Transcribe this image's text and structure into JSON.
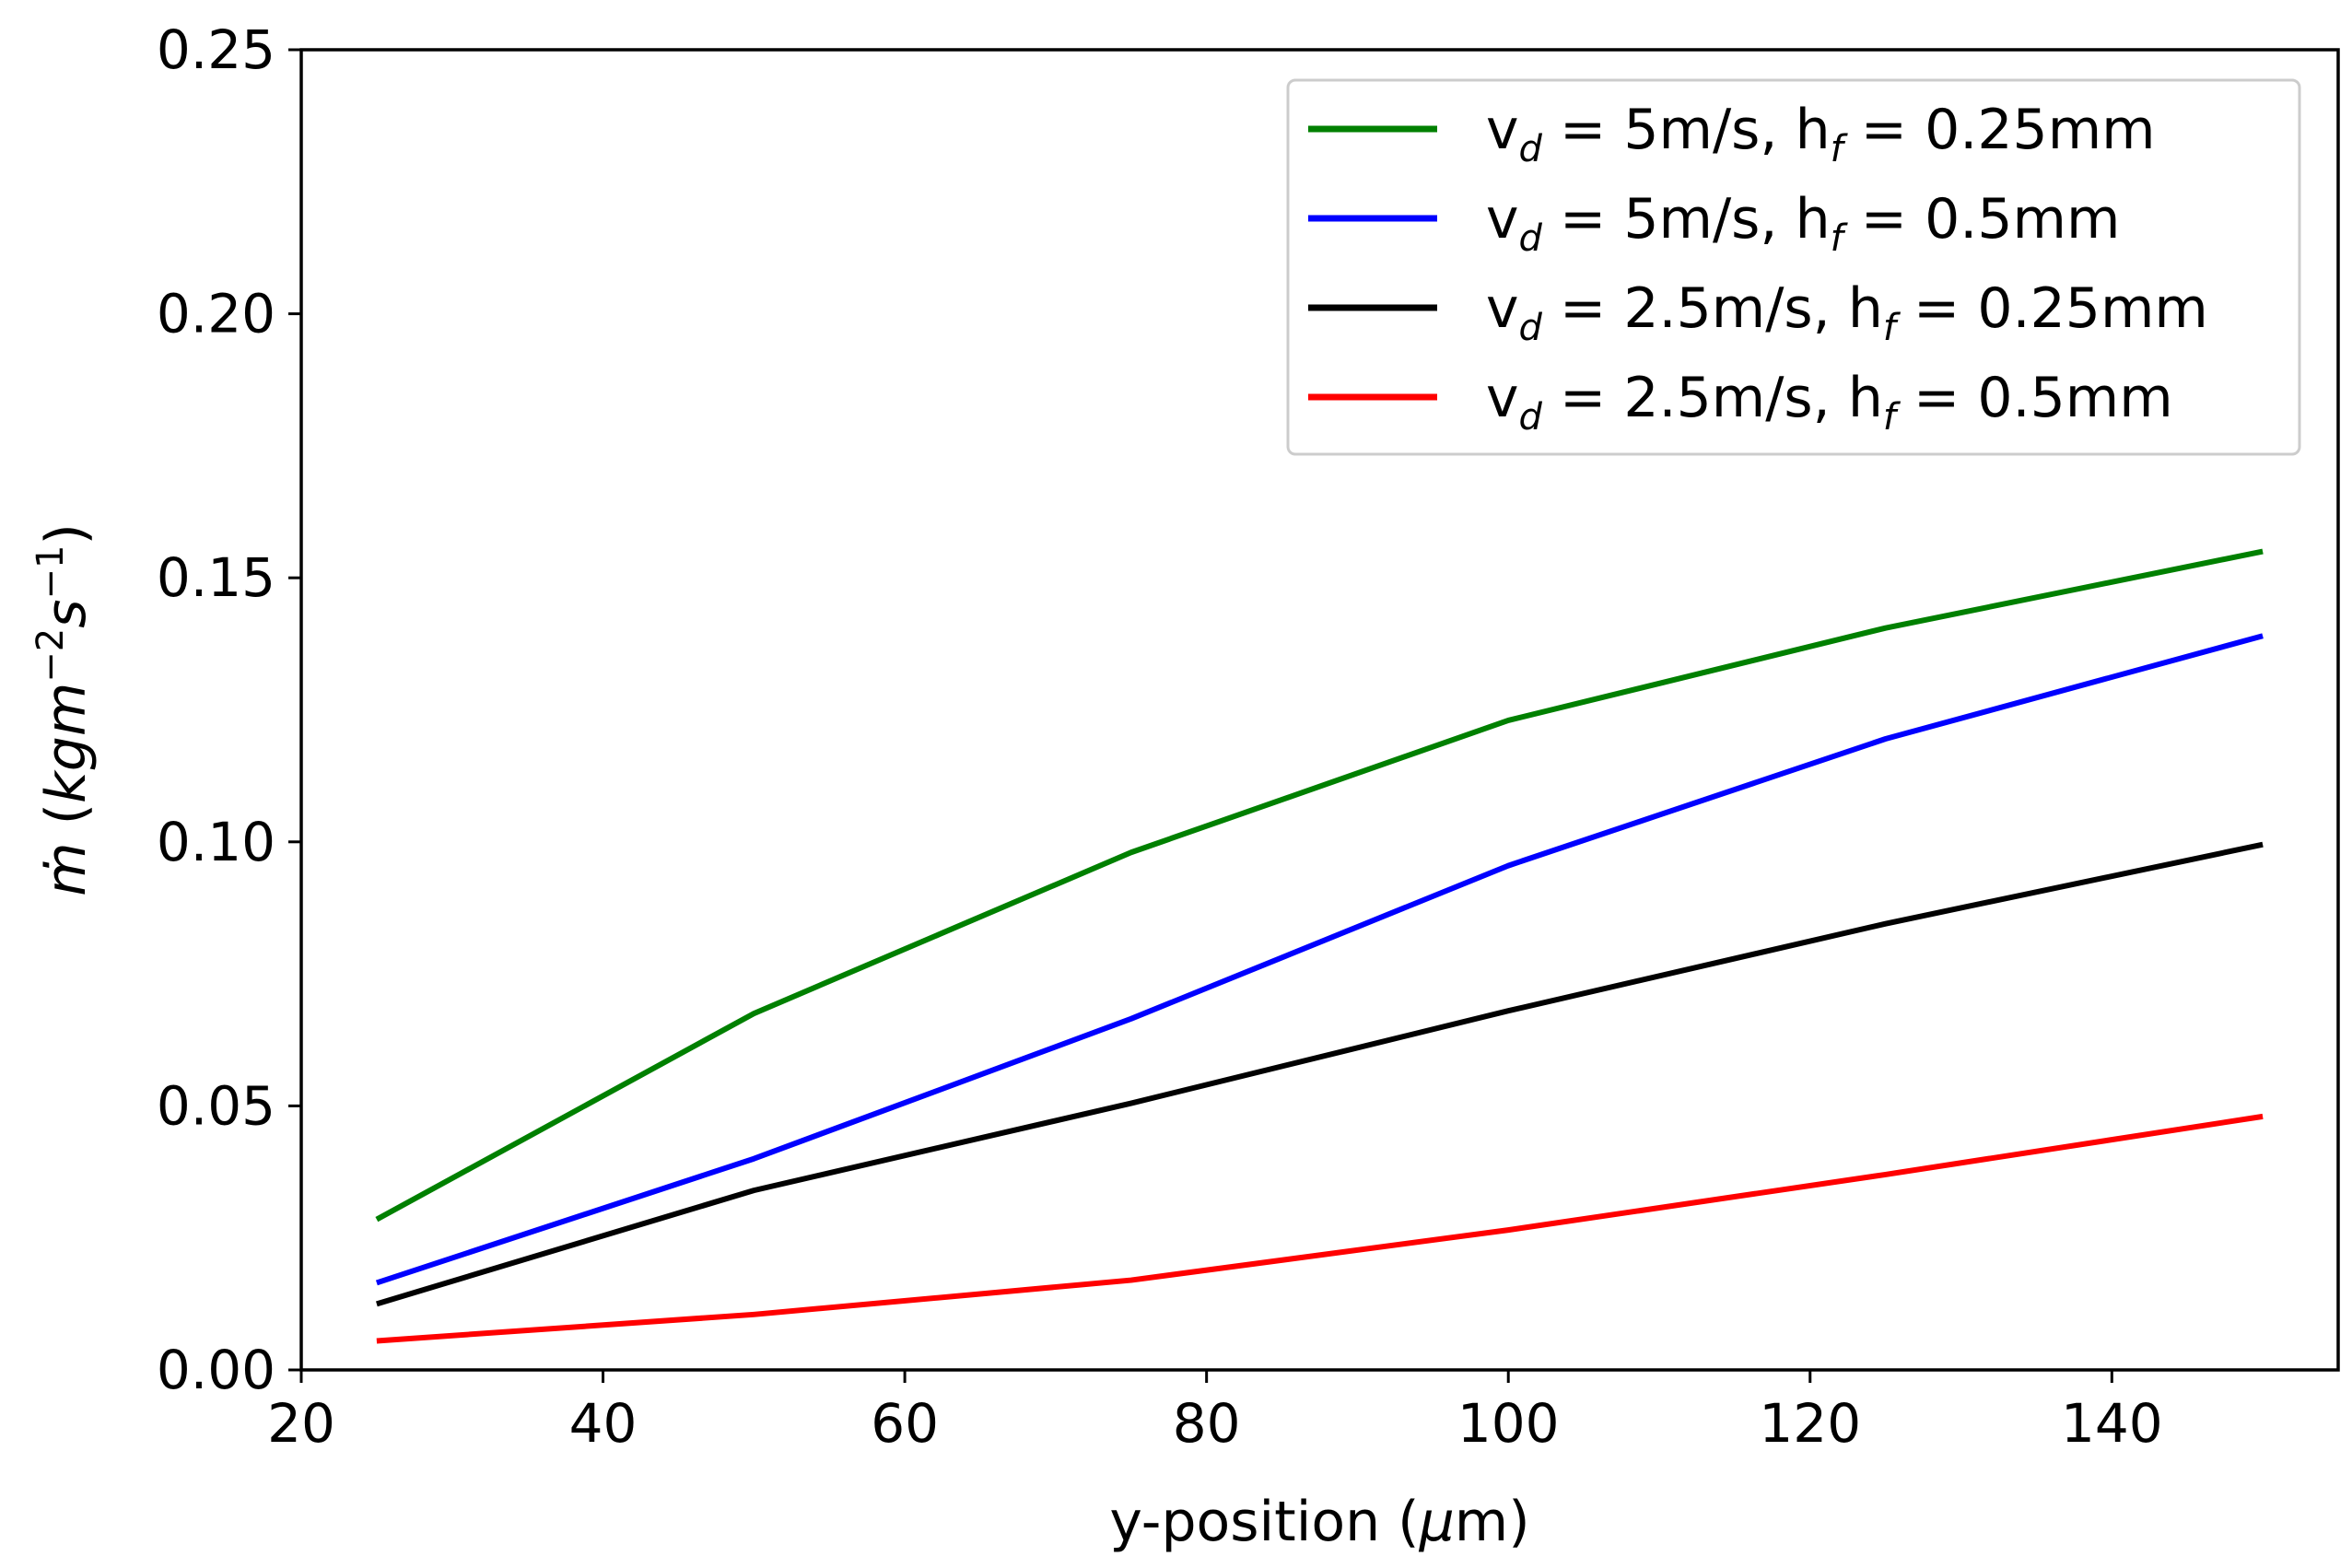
{
  "chart_data": {
    "type": "line",
    "title": "",
    "xlabel": "y-position (μm)",
    "ylabel": "m̄̇ (kgm⁻²s⁻¹)",
    "xlim": [
      20,
      155
    ],
    "ylim": [
      0,
      0.25
    ],
    "xticks": [
      20,
      40,
      60,
      80,
      100,
      120,
      140
    ],
    "yticks": [
      0.0,
      0.05,
      0.1,
      0.15,
      0.2,
      0.25
    ],
    "xtick_labels": [
      "20",
      "40",
      "60",
      "80",
      "100",
      "120",
      "140"
    ],
    "ytick_labels": [
      "0.00",
      "0.05",
      "0.10",
      "0.15",
      "0.20",
      "0.25"
    ],
    "grid": false,
    "legend_position": "top-right",
    "x": [
      25,
      50,
      75,
      100,
      125,
      150
    ],
    "series": [
      {
        "name": "v_d = 5m/s, h_f = 0.25mm",
        "color": "#008000",
        "values": [
          0.0285,
          0.0675,
          0.098,
          0.123,
          0.1405,
          0.155
        ]
      },
      {
        "name": "v_d = 5m/s, h_f = 0.5mm",
        "color": "#0000ff",
        "values": [
          0.0165,
          0.04,
          0.0665,
          0.0955,
          0.1195,
          0.139
        ]
      },
      {
        "name": "v_d = 2.5m/s, h_f = 0.25mm",
        "color": "#000000",
        "values": [
          0.0125,
          0.034,
          0.0505,
          0.068,
          0.0845,
          0.0995
        ]
      },
      {
        "name": "v_d = 2.5m/s, h_f = 0.5mm",
        "color": "#ff0000",
        "values": [
          0.0055,
          0.0105,
          0.017,
          0.0265,
          0.037,
          0.048
        ]
      }
    ],
    "legend": [
      {
        "var": "v",
        "var_sub": "d",
        "mid": " = 5m/s, ",
        "var2": "h",
        "var2_sub": "f",
        "tail": " = 0.25mm"
      },
      {
        "var": "v",
        "var_sub": "d",
        "mid": " = 5m/s, ",
        "var2": "h",
        "var2_sub": "f",
        "tail": " = 0.5mm"
      },
      {
        "var": "v",
        "var_sub": "d",
        "mid": " = 2.5m/s, ",
        "var2": "h",
        "var2_sub": "f",
        "tail": " = 0.25mm"
      },
      {
        "var": "v",
        "var_sub": "d",
        "mid": " = 2.5m/s, ",
        "var2": "h",
        "var2_sub": "f",
        "tail": " = 0.5mm"
      }
    ],
    "xlabel_parts": {
      "pre": "y-position (",
      "mu": "μ",
      "post": "m)"
    },
    "ylabel_parts": {
      "symbol": "ṁ",
      "bar": "¯",
      "open": " (",
      "unit": "kgm",
      "sup1": "−2",
      "unit2": "s",
      "sup2": "−1",
      "close": ")"
    }
  }
}
